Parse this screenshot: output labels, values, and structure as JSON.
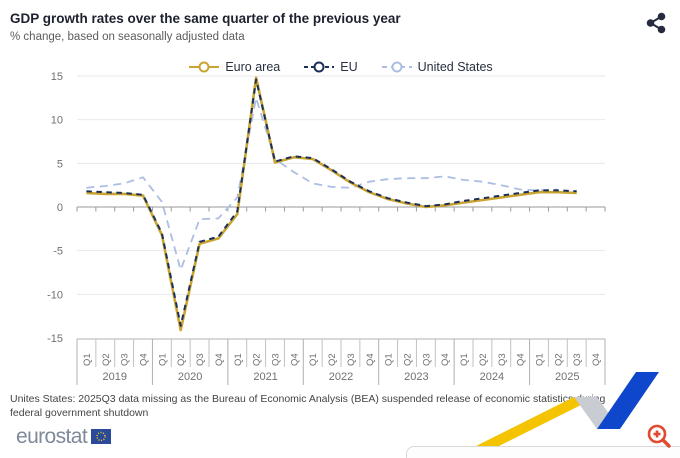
{
  "header": {
    "title": "GDP growth rates over the same quarter of the previous year",
    "subtitle": "% change, based on seasonally adjusted data"
  },
  "icons": {
    "share": "share-icon",
    "zoom": "magnifier-plus-icon",
    "eu_flag": "eu-flag-icon",
    "ribbon": "eurostat-ribbon-graphic"
  },
  "chart_data": {
    "type": "line",
    "title": "GDP growth rates over the same quarter of the previous year",
    "ylabel": "% change",
    "ylim": [
      -15,
      15
    ],
    "yticks": [
      15,
      10,
      5,
      0,
      -5,
      -10,
      -15
    ],
    "grid": true,
    "legend_position": "top-center",
    "year_labels": [
      "2019",
      "2020",
      "2021",
      "2022",
      "2023",
      "2024",
      "2025"
    ],
    "quarter_labels": [
      "Q1",
      "Q2",
      "Q3",
      "Q4"
    ],
    "series": [
      {
        "name": "Euro area",
        "color": "#c9a431",
        "dash": "solid",
        "values": [
          1.6,
          1.5,
          1.5,
          1.3,
          -3.2,
          -14.1,
          -4.2,
          -3.6,
          -0.8,
          14.8,
          5.1,
          5.7,
          5.5,
          4.2,
          2.8,
          1.7,
          0.9,
          0.4,
          0.0,
          0.2,
          0.5,
          0.8,
          1.1,
          1.4,
          1.7,
          1.7,
          1.6,
          null
        ]
      },
      {
        "name": "EU",
        "color": "#1c2f5a",
        "dash": "short-dash",
        "values": [
          1.8,
          1.7,
          1.6,
          1.4,
          -3.0,
          -13.6,
          -4.0,
          -3.4,
          -0.5,
          14.6,
          5.2,
          5.8,
          5.6,
          4.3,
          2.9,
          1.8,
          1.0,
          0.5,
          0.1,
          0.3,
          0.7,
          1.0,
          1.3,
          1.6,
          1.9,
          1.9,
          1.8,
          null
        ]
      },
      {
        "name": "United States",
        "color": "#acbee3",
        "dash": "long-dash",
        "values": [
          2.2,
          2.4,
          2.7,
          3.4,
          0.6,
          -7.2,
          -1.4,
          -1.3,
          1.1,
          12.5,
          5.5,
          4.0,
          2.7,
          2.3,
          2.2,
          2.9,
          3.2,
          3.3,
          3.3,
          3.5,
          3.1,
          2.9,
          2.5,
          2.0,
          1.9,
          2.0,
          null,
          null
        ]
      }
    ],
    "colors": {
      "grid": "#e9e9e9",
      "zero_axis": "#9a9a9a",
      "axis": "#b0b0b0",
      "tick_text": "#707070"
    }
  },
  "footnote": "Unites States: 2025Q3 data missing as the Bureau of Economic Analysis (BEA) suspended release of economic statistics during federal government shutdown",
  "logo": {
    "text": "eurostat"
  }
}
